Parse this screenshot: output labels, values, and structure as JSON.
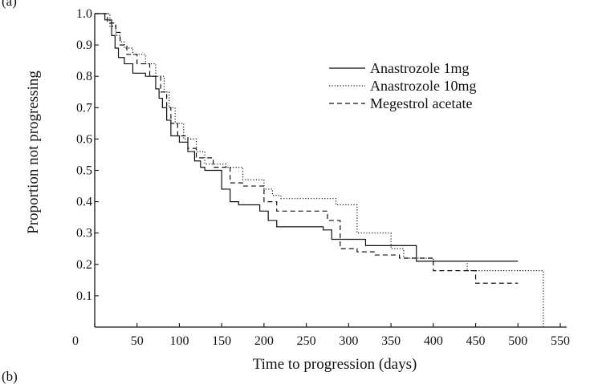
{
  "panel_labels": {
    "top": "(a)",
    "bottom": "(b)"
  },
  "chart_data": {
    "type": "line",
    "title": "",
    "xlabel": "Time to progression (days)",
    "ylabel": "Proportion not progressing",
    "xlim": [
      0,
      550
    ],
    "ylim": [
      0,
      1.0
    ],
    "x_ticks": [
      0,
      50,
      100,
      150,
      200,
      250,
      300,
      350,
      400,
      450,
      500,
      550
    ],
    "y_ticks": [
      0.1,
      0.2,
      0.3,
      0.4,
      0.5,
      0.6,
      0.7,
      0.8,
      0.9,
      1.0
    ],
    "y_tick_labels": [
      "0.1",
      "0.2",
      "0.3",
      "0.4",
      "0.5",
      "0.6",
      "0.7",
      "0.8",
      "0.9",
      "1.0"
    ],
    "x_tick_labels": [
      "0",
      "50",
      "100",
      "150",
      "200",
      "250",
      "300",
      "350",
      "400",
      "450",
      "500",
      "550"
    ],
    "step": true,
    "grid": false,
    "legend_position": "top-right",
    "series": [
      {
        "name": "Anastrozole 1mg",
        "dash": "solid",
        "x": [
          0,
          12,
          20,
          24,
          28,
          35,
          45,
          60,
          72,
          76,
          80,
          85,
          90,
          100,
          110,
          118,
          125,
          130,
          150,
          160,
          170,
          195,
          205,
          215,
          260,
          270,
          280,
          300,
          320,
          350,
          380,
          500
        ],
        "y": [
          1.0,
          0.98,
          0.93,
          0.89,
          0.86,
          0.84,
          0.81,
          0.8,
          0.76,
          0.73,
          0.7,
          0.66,
          0.61,
          0.59,
          0.56,
          0.53,
          0.51,
          0.5,
          0.44,
          0.4,
          0.39,
          0.37,
          0.34,
          0.32,
          0.32,
          0.31,
          0.28,
          0.28,
          0.26,
          0.26,
          0.21,
          0.21
        ]
      },
      {
        "name": "Anastrozole 10mg",
        "dash": "dotted",
        "x": [
          0,
          18,
          25,
          30,
          35,
          45,
          60,
          72,
          82,
          88,
          95,
          105,
          120,
          130,
          155,
          175,
          200,
          210,
          220,
          270,
          285,
          310,
          350,
          365,
          400,
          440,
          530
        ],
        "y": [
          1.0,
          0.96,
          0.93,
          0.91,
          0.89,
          0.87,
          0.84,
          0.8,
          0.75,
          0.7,
          0.65,
          0.6,
          0.56,
          0.52,
          0.51,
          0.47,
          0.44,
          0.42,
          0.41,
          0.41,
          0.39,
          0.3,
          0.25,
          0.22,
          0.21,
          0.18,
          0.0
        ]
      },
      {
        "name": "Megestrol acetate",
        "dash": "dashed",
        "x": [
          0,
          15,
          25,
          30,
          38,
          50,
          65,
          78,
          85,
          90,
          98,
          110,
          120,
          140,
          160,
          175,
          200,
          215,
          250,
          275,
          290,
          310,
          330,
          360,
          400,
          450,
          500
        ],
        "y": [
          1.0,
          0.97,
          0.94,
          0.9,
          0.87,
          0.84,
          0.8,
          0.75,
          0.7,
          0.65,
          0.61,
          0.57,
          0.54,
          0.51,
          0.46,
          0.45,
          0.4,
          0.37,
          0.37,
          0.34,
          0.25,
          0.24,
          0.23,
          0.22,
          0.18,
          0.14,
          0.14
        ]
      }
    ]
  }
}
